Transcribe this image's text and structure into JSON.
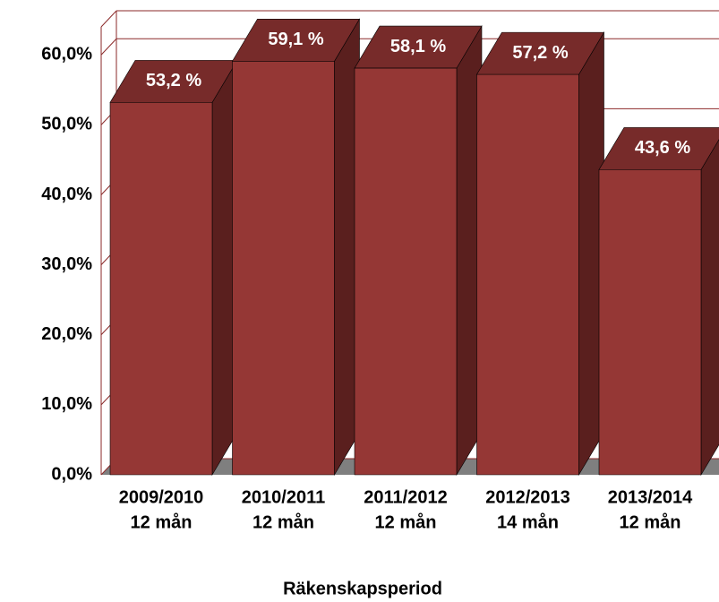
{
  "chart_data": {
    "type": "bar3d",
    "x_label": "Räkenskapsperiod",
    "categories": [
      [
        "2009/2010",
        "12 mån"
      ],
      [
        "2010/2011",
        "12 mån"
      ],
      [
        "2011/2012",
        "12 mån"
      ],
      [
        "2012/2013",
        "14 mån"
      ],
      [
        "2013/2014",
        "12 mån"
      ]
    ],
    "values": [
      53.2,
      59.1,
      58.1,
      57.2,
      43.6
    ],
    "value_labels": [
      "53,2 %",
      "59,1 %",
      "58,1 %",
      "57,2 %",
      "43,6 %"
    ],
    "color": "#953735",
    "ylim": [
      0,
      64
    ],
    "yticks": [
      {
        "value": 0,
        "label": "0,0%"
      },
      {
        "value": 10,
        "label": "10,0%"
      },
      {
        "value": 20,
        "label": "20,0%"
      },
      {
        "value": 30,
        "label": "30,0%"
      },
      {
        "value": 40,
        "label": "40,0%"
      },
      {
        "value": 50,
        "label": "50,0%"
      },
      {
        "value": 60,
        "label": "60,0%"
      }
    ],
    "grid": true
  }
}
